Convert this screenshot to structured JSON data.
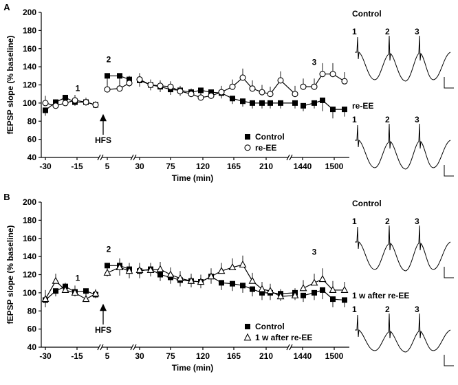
{
  "chart_data": [
    {
      "type": "line",
      "panel_label": "A",
      "ylabel": "fEPSP slope (% baseline)",
      "xlabel": "Time (min)",
      "ylim": [
        40,
        200
      ],
      "y_ticks": [
        "40",
        "60",
        "80",
        "100",
        "120",
        "140",
        "160",
        "180",
        "200"
      ],
      "x_tick_labels": [
        "-30",
        "-15",
        "5",
        "30",
        "75",
        "120",
        "165",
        "210",
        "1440",
        "1500"
      ],
      "annotations": {
        "point1": "1",
        "point2": "2",
        "point3": "3",
        "stimulus": "HFS"
      },
      "legend": {
        "placement": "lower-right",
        "series1": "Control",
        "series2": "re-EE"
      },
      "series": [
        {
          "name": "Control",
          "marker": "filled-square",
          "values": [
            92,
            101,
            106,
            101,
            101,
            98,
            130,
            130,
            126,
            125,
            120,
            118,
            115,
            114,
            112,
            114,
            112,
            111,
            105,
            102,
            100,
            100,
            100,
            100,
            100,
            97,
            100,
            103,
            93,
            93
          ],
          "errors": [
            6,
            5,
            5,
            4,
            4,
            3,
            10,
            9,
            8,
            7,
            6,
            6,
            6,
            6,
            5,
            6,
            6,
            6,
            6,
            6,
            6,
            6,
            6,
            6,
            6,
            6,
            6,
            12,
            10,
            8
          ]
        },
        {
          "name": "re-EE",
          "marker": "open-circle",
          "values": [
            100,
            97,
            100,
            103,
            101,
            98,
            115,
            116,
            122,
            126,
            120,
            119,
            118,
            113,
            110,
            106,
            108,
            112,
            118,
            128,
            116,
            112,
            110,
            125,
            110,
            118,
            118,
            132,
            132,
            124
          ],
          "errors": [
            8,
            7,
            7,
            6,
            5,
            4,
            10,
            9,
            8,
            7,
            6,
            6,
            6,
            6,
            6,
            6,
            6,
            7,
            8,
            10,
            9,
            8,
            8,
            10,
            9,
            9,
            9,
            12,
            12,
            10
          ]
        }
      ],
      "traces": {
        "label_top": "Control",
        "label_bottom": "re-EE",
        "numbers": [
          "1",
          "2",
          "3"
        ]
      }
    },
    {
      "type": "line",
      "panel_label": "B",
      "ylabel": "fEPSP slope (% baseline)",
      "xlabel": "Time (min)",
      "ylim": [
        40,
        200
      ],
      "y_ticks": [
        "40",
        "60",
        "80",
        "100",
        "120",
        "140",
        "160",
        "180",
        "200"
      ],
      "x_tick_labels": [
        "-30",
        "-15",
        "5",
        "30",
        "75",
        "120",
        "165",
        "210",
        "1440",
        "1500"
      ],
      "annotations": {
        "point1": "1",
        "point2": "2",
        "point3": "3",
        "stimulus": "HFS"
      },
      "legend": {
        "placement": "lower-right",
        "series1": "Control",
        "series2": "1 w after re-EE"
      },
      "series": [
        {
          "name": "Control",
          "marker": "filled-square",
          "values": [
            92,
            102,
            107,
            101,
            102,
            98,
            130,
            130,
            126,
            124,
            126,
            120,
            117,
            114,
            113,
            112,
            118,
            111,
            110,
            108,
            104,
            100,
            100,
            99,
            100,
            97,
            100,
            103,
            93,
            92
          ],
          "errors": [
            8,
            6,
            6,
            5,
            5,
            4,
            12,
            11,
            10,
            8,
            8,
            7,
            7,
            7,
            7,
            7,
            8,
            8,
            8,
            8,
            8,
            8,
            8,
            8,
            8,
            7,
            8,
            10,
            9,
            8
          ]
        },
        {
          "name": "1 w after re-EE",
          "marker": "open-triangle",
          "values": [
            93,
            113,
            103,
            100,
            93,
            99,
            122,
            128,
            124,
            125,
            125,
            126,
            120,
            116,
            113,
            112,
            118,
            124,
            128,
            131,
            113,
            104,
            102,
            96,
            97,
            105,
            111,
            115,
            103,
            103
          ],
          "errors": [
            10,
            8,
            8,
            8,
            7,
            5,
            10,
            10,
            9,
            8,
            8,
            8,
            8,
            8,
            8,
            8,
            9,
            9,
            10,
            10,
            9,
            8,
            8,
            8,
            8,
            9,
            10,
            12,
            10,
            9
          ]
        }
      ],
      "traces": {
        "label_top": "Control",
        "label_bottom": "1 w after re-EE",
        "numbers": [
          "1",
          "2",
          "3"
        ]
      }
    }
  ]
}
